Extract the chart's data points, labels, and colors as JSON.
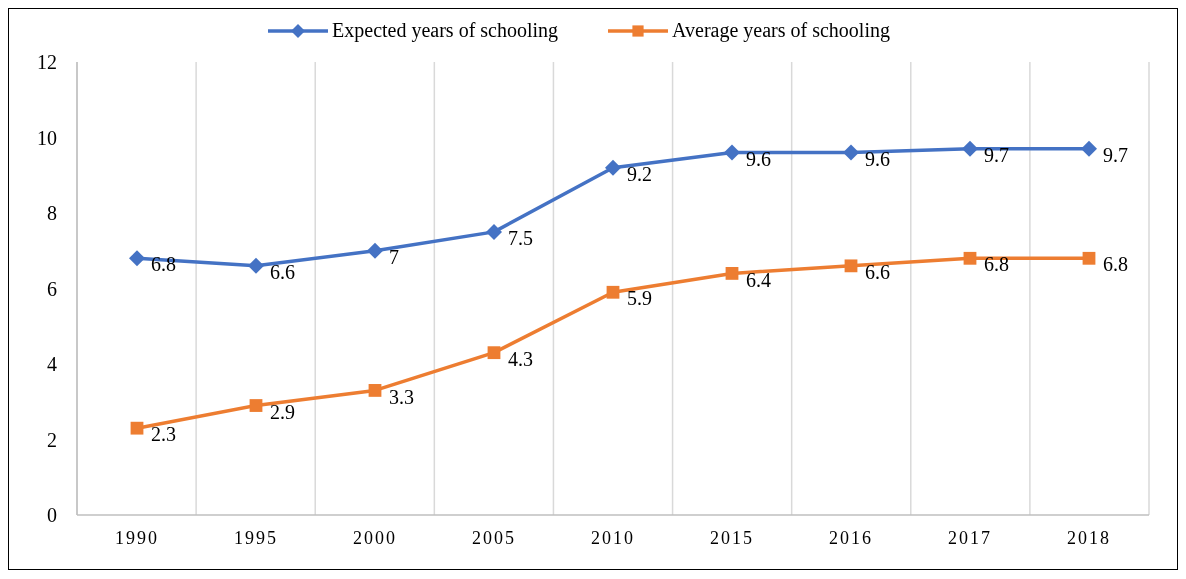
{
  "chart_data": {
    "type": "line",
    "categories": [
      "1990",
      "1995",
      "2000",
      "2005",
      "2010",
      "2015",
      "2016",
      "2017",
      "2018"
    ],
    "series": [
      {
        "name": "Expected years of schooling",
        "color": "#4472c4",
        "marker": "diamond",
        "values": [
          6.8,
          6.6,
          7,
          7.5,
          9.2,
          9.6,
          9.6,
          9.7,
          9.7
        ]
      },
      {
        "name": "Average years of schooling",
        "color": "#ed7d31",
        "marker": "square",
        "values": [
          2.3,
          2.9,
          3.3,
          4.3,
          5.9,
          6.4,
          6.6,
          6.8,
          6.8
        ]
      }
    ],
    "ylim": [
      0,
      12
    ],
    "yticks": [
      0,
      2,
      4,
      6,
      8,
      10,
      12
    ],
    "grid": "x",
    "legend": "top",
    "data_labels": true,
    "line_style": "solid"
  }
}
